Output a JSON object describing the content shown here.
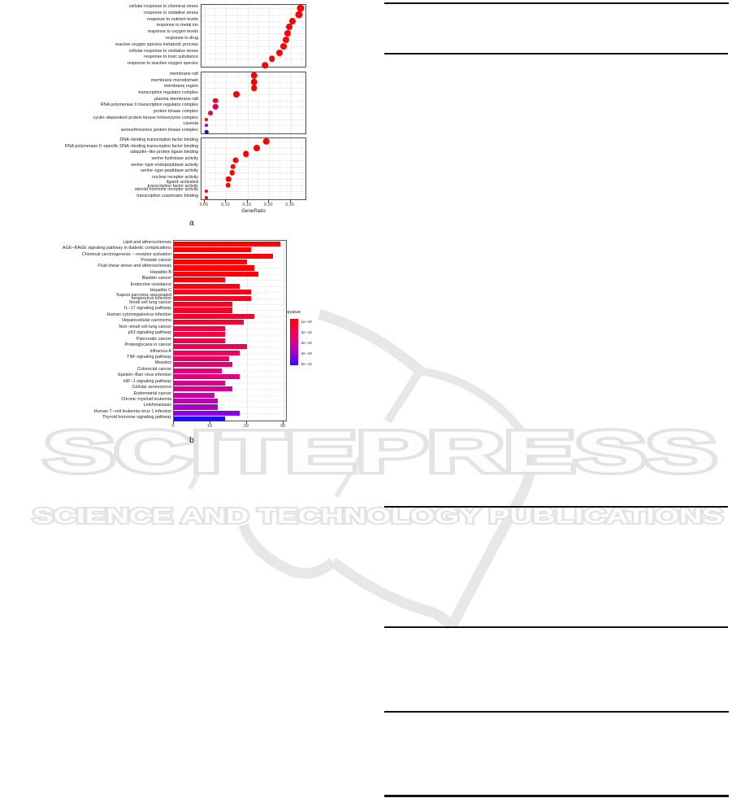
{
  "page": {
    "background": "#ffffff"
  },
  "watermark": {
    "title": "SCITEPRESS",
    "subtitle": "SCIENCE AND TECHNOLOGY PUBLICATIONS",
    "color": "#e3e3e7"
  },
  "chart_data": [
    {
      "type": "scatter",
      "name": "GO enrichment dot plot",
      "panel_label": "a",
      "xlabel": "GeneRatio",
      "x_ticks": [
        "0.05",
        "0.10",
        "0.15",
        "0.20",
        "0.25"
      ],
      "x_tick_values": [
        0.05,
        0.1,
        0.15,
        0.2,
        0.25
      ],
      "x_minor_values": [
        0.075,
        0.125,
        0.175,
        0.225,
        0.275
      ],
      "xlim": [
        0.0425,
        0.2885
      ],
      "grid": true,
      "facets": [
        {
          "rows": [
            {
              "label": "cellular response to chemical stress",
              "value": 0.274,
              "size": 9,
              "color": "#f80402"
            },
            {
              "label": "response to oxidative stress",
              "value": 0.27,
              "size": 9,
              "color": "#f80402"
            },
            {
              "label": "response to nutrient levels",
              "value": 0.254,
              "size": 8,
              "color": "#f80402"
            },
            {
              "label": "response to metal ion",
              "value": 0.247,
              "size": 8,
              "color": "#f80402"
            },
            {
              "label": "response to oxygen levels",
              "value": 0.243,
              "size": 8,
              "color": "#f80402"
            },
            {
              "label": "response to drug",
              "value": 0.24,
              "size": 8,
              "color": "#f80402"
            },
            {
              "label": "reactive oxygen species metabolic process",
              "value": 0.233,
              "size": 8,
              "color": "#f80402"
            },
            {
              "label": "cellular response to oxidative stress",
              "value": 0.224,
              "size": 8,
              "color": "#f80402"
            },
            {
              "label": "response to toxic substance",
              "value": 0.207,
              "size": 7.5,
              "color": "#f80402"
            },
            {
              "label": "response to reactive oxygen species",
              "value": 0.191,
              "size": 7.5,
              "color": "#f80402"
            }
          ]
        },
        {
          "rows": [
            {
              "label": "membrane raft",
              "value": 0.165,
              "size": 8.5,
              "color": "#f80402"
            },
            {
              "label": "membrane microdomain",
              "value": 0.165,
              "size": 8.5,
              "color": "#f80402"
            },
            {
              "label": "membrane region",
              "value": 0.165,
              "size": 7.5,
              "color": "#f80402"
            },
            {
              "label": "transcription regulator complex",
              "value": 0.124,
              "size": 8,
              "color": "#f80402"
            },
            {
              "label": "plasma membrane raft",
              "value": 0.075,
              "size": 6.5,
              "color": "#f5052c"
            },
            {
              "label": "RNA polymerase II transcription regulator complex",
              "value": 0.075,
              "size": 6.5,
              "color": "#d4006e"
            },
            {
              "label": "protein kinase complex",
              "value": 0.064,
              "size": 6,
              "color": "#e80048"
            },
            {
              "label": "cyclin−dependent protein kinase holoenzyme complex",
              "value": 0.053,
              "size": 4,
              "color": "#f80402"
            },
            {
              "label": "caveola",
              "value": 0.053,
              "size": 4,
              "color": "#a800c0"
            },
            {
              "label": "serine/threonine protein kinase complex",
              "value": 0.054,
              "size": 4.5,
              "color": "#2a06e8"
            }
          ]
        },
        {
          "rows": [
            {
              "label": "DNA−binding transcription factor binding",
              "value": 0.193,
              "size": 8.5,
              "color": "#f80402"
            },
            {
              "label": "RNA polymerase II−specific DNA−binding transcription factor binding",
              "value": 0.172,
              "size": 8,
              "color": "#f80402"
            },
            {
              "label": "ubiquitin−like protein ligase binding",
              "value": 0.146,
              "size": 7.5,
              "color": "#f80402"
            },
            {
              "label": "serine hydrolase activity",
              "value": 0.122,
              "size": 7,
              "color": "#f80402"
            },
            {
              "label": "serine−type endopeptidase activity",
              "value": 0.116,
              "size": 6.5,
              "color": "#f80402"
            },
            {
              "label": "serine−type peptidase activity",
              "value": 0.114,
              "size": 6.5,
              "color": "#f80402"
            },
            {
              "label": "nuclear receptor activity",
              "value": 0.105,
              "size": 6.5,
              "color": "#f80402"
            },
            {
              "label": "ligand−activated transcription factor activity",
              "lines": [
                "ligand−activated",
                "transcription factor activity"
              ],
              "value": 0.104,
              "size": 6.5,
              "color": "#f80402"
            },
            {
              "label": "steroid hormone receptor activity",
              "value": 0.053,
              "size": 4,
              "color": "#f80402"
            },
            {
              "label": "transcription coactivator binding",
              "value": 0.053,
              "size": 4,
              "color": "#f80402"
            }
          ]
        }
      ]
    },
    {
      "type": "bar",
      "name": "KEGG pathway enrichment bar chart",
      "panel_label": "b",
      "xlabel": "",
      "x_ticks": [
        "0",
        "10",
        "20",
        "30"
      ],
      "x_tick_values": [
        0,
        10,
        20,
        30
      ],
      "x_minor_values": [
        5,
        15,
        25
      ],
      "xlim": [
        0,
        31.1
      ],
      "grid": true,
      "legend": {
        "title": "qvalue",
        "position": "right",
        "tick_labels": [
          "1e−10",
          "2e−10",
          "3e−10",
          "4e−10",
          "5e−10"
        ],
        "gradient": [
          "#fb0000",
          "#f3004a",
          "#d8008c",
          "#9a00d5",
          "#2a10f5"
        ]
      },
      "rows": [
        {
          "label": "Lipid and atherosclerosis",
          "value": 29,
          "color": "#fb0000"
        },
        {
          "label": "AGE−RAGE signaling pathway in diabetic complications",
          "value": 21,
          "color": "#fb0000"
        },
        {
          "label": "Chemical carcinogenesis − receptor activation",
          "value": 27,
          "color": "#fb0002"
        },
        {
          "label": "Prostate cancer",
          "value": 20,
          "color": "#fb0004"
        },
        {
          "label": "Fluid shear stress and atherosclerosis",
          "value": 22,
          "color": "#fa0007"
        },
        {
          "label": "Hepatitis B",
          "value": 23,
          "color": "#fa000a"
        },
        {
          "label": "Bladder cancer",
          "value": 14,
          "color": "#fa000e"
        },
        {
          "label": "Endocrine resistance",
          "value": 18,
          "color": "#fa0012"
        },
        {
          "label": "Hepatitis C",
          "value": 21,
          "color": "#f90017"
        },
        {
          "label": "Kaposi sarcoma−associated herpesvirus infection",
          "lines": [
            "Kaposi sarcoma−associated",
            "herpesvirus infection"
          ],
          "value": 21,
          "color": "#f9001c"
        },
        {
          "label": "Small cell lung cancer",
          "value": 16,
          "color": "#f80021"
        },
        {
          "label": "IL−17 signaling pathway",
          "value": 16,
          "color": "#f70027"
        },
        {
          "label": "Human cytomegalovirus infection",
          "value": 22,
          "color": "#f6002d"
        },
        {
          "label": "Hepatocellular carcinoma",
          "value": 19,
          "color": "#f50034"
        },
        {
          "label": "Non−small cell lung cancer",
          "value": 14,
          "color": "#f4003b"
        },
        {
          "label": "p53 signaling pathway",
          "value": 14,
          "color": "#f20042"
        },
        {
          "label": "Pancreatic cancer",
          "value": 14,
          "color": "#f0004a"
        },
        {
          "label": "Proteoglycans in cancer",
          "value": 20,
          "color": "#ee0052"
        },
        {
          "label": "Influenza A",
          "value": 18,
          "color": "#ec005a"
        },
        {
          "label": "TNF signaling pathway",
          "value": 15,
          "color": "#e90063"
        },
        {
          "label": "Measles",
          "value": 16,
          "color": "#e6006c"
        },
        {
          "label": "Colorectal cancer",
          "value": 13,
          "color": "#e20076"
        },
        {
          "label": "Epstein−Barr virus infection",
          "value": 18,
          "color": "#de0080"
        },
        {
          "label": "HIF−1 signaling pathway",
          "value": 14,
          "color": "#d9008b"
        },
        {
          "label": "Cellular senescence",
          "value": 16,
          "color": "#d30097"
        },
        {
          "label": "Endometrial cancer",
          "value": 11,
          "color": "#c900a5"
        },
        {
          "label": "Chronic myeloid leukemia",
          "value": 12,
          "color": "#bc00b4"
        },
        {
          "label": "Leishmaniasis",
          "value": 12,
          "color": "#ac00c6"
        },
        {
          "label": "Human T−cell leukemia virus 1 infection",
          "value": 18,
          "color": "#8a00e2"
        },
        {
          "label": "Thyroid hormone signaling pathway",
          "value": 14,
          "color": "#1d0df5"
        }
      ]
    }
  ]
}
